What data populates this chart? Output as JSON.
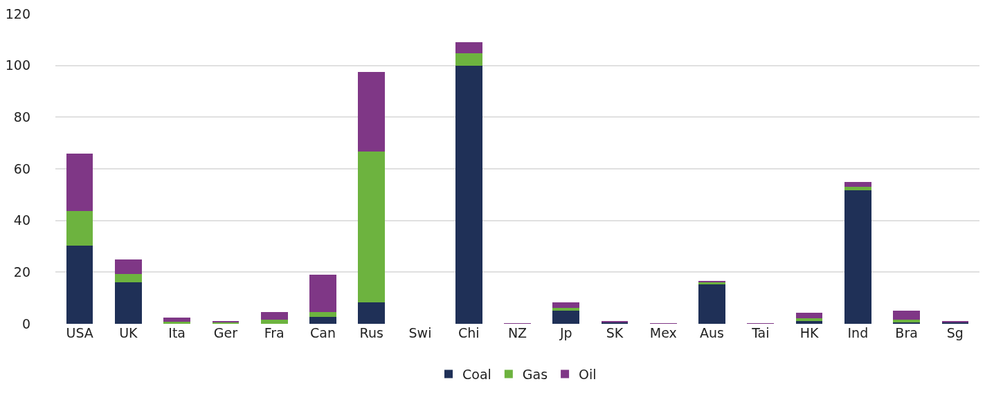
{
  "chart_data": {
    "type": "bar",
    "stacked": true,
    "categories": [
      "USA",
      "UK",
      "Ita",
      "Ger",
      "Fra",
      "Can",
      "Rus",
      "Swi",
      "Chi",
      "NZ",
      "Jp",
      "SK",
      "Mex",
      "Aus",
      "Tai",
      "HK",
      "Ind",
      "Bra",
      "Sg"
    ],
    "series": [
      {
        "name": "Coal",
        "color": "#1f3057",
        "values": [
          30.4,
          16.2,
          0.1,
          0.1,
          0,
          2.8,
          8.3,
          0,
          100,
          0,
          5,
          0.8,
          0,
          15.3,
          0,
          1.2,
          51.8,
          0.5,
          0.6
        ]
      },
      {
        "name": "Gas",
        "color": "#6db33f",
        "values": [
          13.3,
          3,
          0.7,
          0.5,
          1.7,
          1.7,
          58.5,
          0,
          4.7,
          0,
          1.1,
          0,
          0,
          1,
          0,
          1,
          1.2,
          1,
          0
        ]
      },
      {
        "name": "Oil",
        "color": "#7f3786",
        "values": [
          22.3,
          5.8,
          1.7,
          0.4,
          2.8,
          14.4,
          30.7,
          0,
          4.2,
          0.2,
          2.3,
          0.3,
          0.2,
          0.3,
          0.2,
          2,
          1.8,
          3.5,
          0.4
        ]
      }
    ],
    "ylim": [
      0,
      120
    ],
    "yticks": [
      0,
      20,
      40,
      60,
      80,
      100,
      120
    ],
    "grid": "y",
    "legend": "bottom"
  }
}
